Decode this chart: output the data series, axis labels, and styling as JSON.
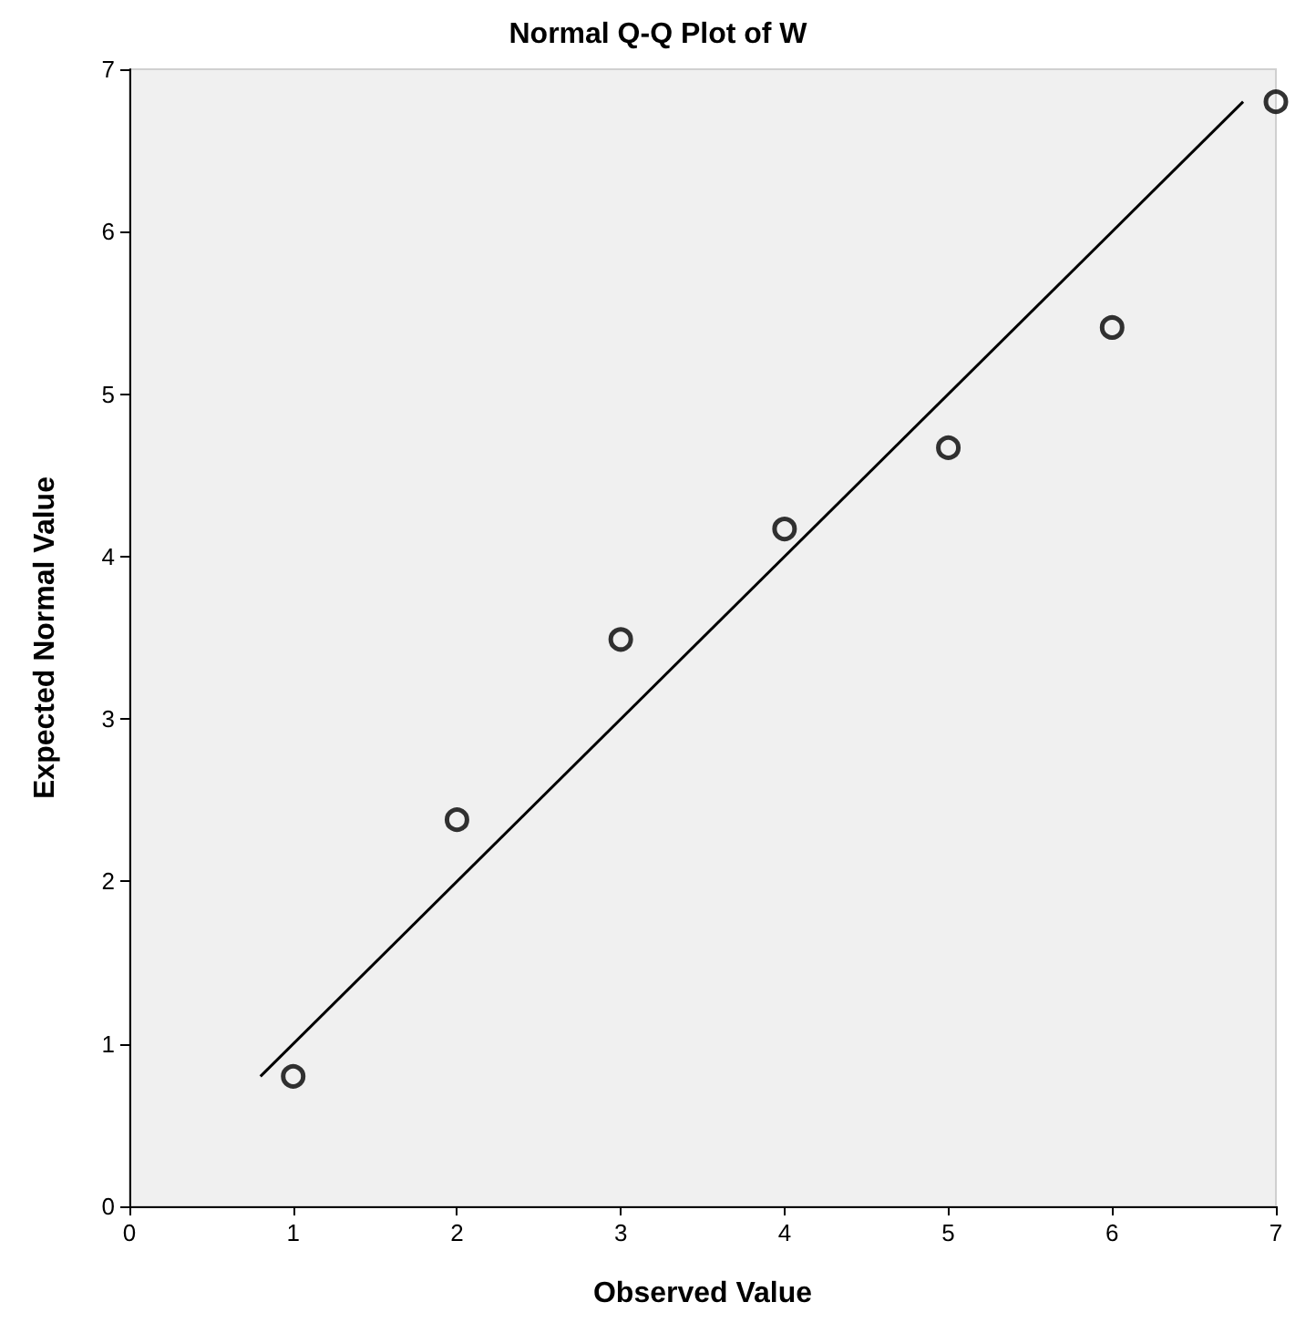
{
  "chart_data": {
    "type": "scatter",
    "title": "Normal Q-Q Plot of W",
    "xlabel": "Observed Value",
    "ylabel": "Expected Normal Value",
    "series": [
      {
        "color": "#000000",
        "marker": "circle",
        "x": [
          1,
          2,
          3,
          4,
          5,
          6,
          7
        ],
        "values": [
          0.8,
          2.38,
          3.49,
          4.17,
          4.67,
          5.41,
          6.8
        ]
      },
      {
        "type": "line",
        "color": "#000000",
        "marker": "none",
        "x": [
          0.8,
          6.8
        ],
        "values": [
          0.8,
          6.8
        ]
      }
    ],
    "xlim": [
      0,
      7
    ],
    "xticks": [
      0,
      1,
      2,
      3,
      4,
      5,
      6,
      7
    ],
    "ylim": [
      0,
      7
    ],
    "yticks": [
      0,
      1,
      2,
      3,
      4,
      5,
      6,
      7
    ],
    "grid": false
  }
}
